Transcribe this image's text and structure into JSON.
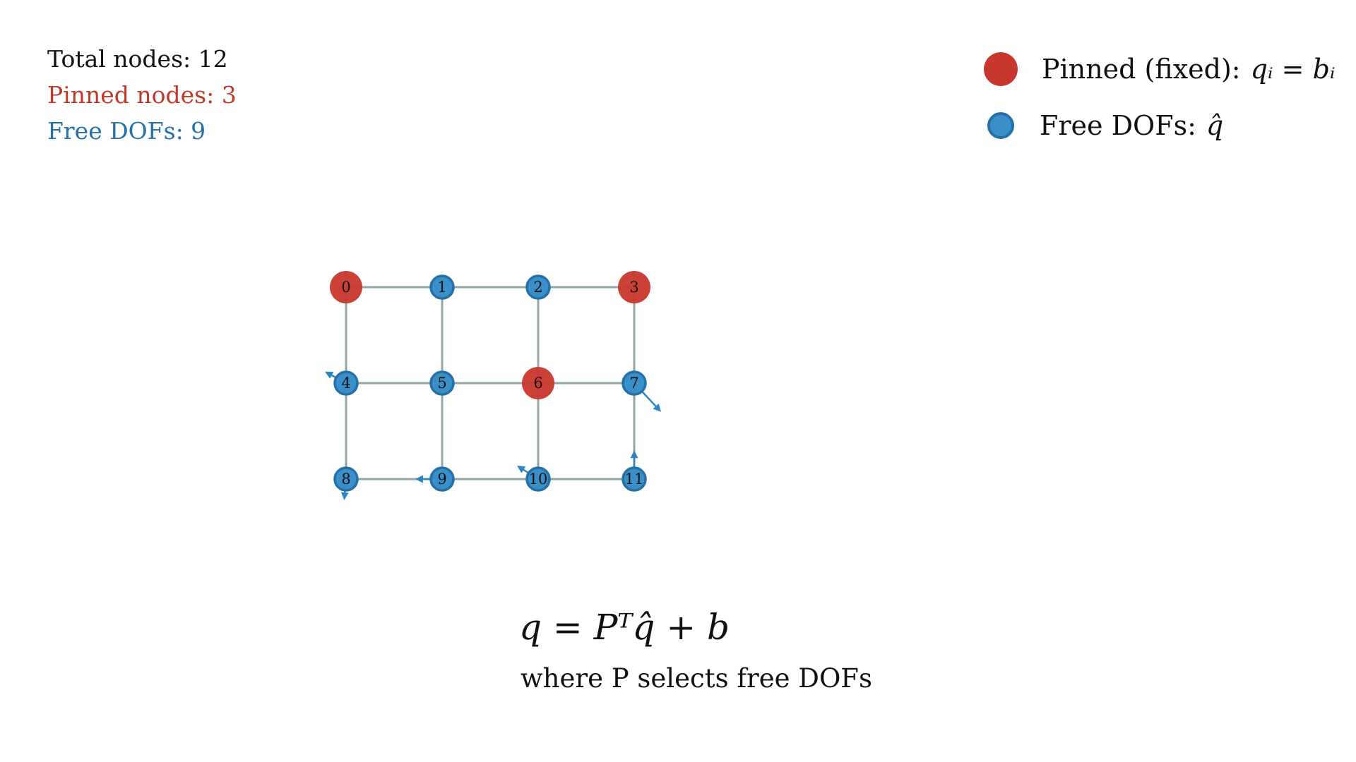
{
  "stats": {
    "total_nodes": "Total nodes: 12",
    "pinned_nodes": "Pinned nodes: 3",
    "free_dofs": "Free DOFs: 9"
  },
  "legend": {
    "pinned_label": "Pinned (fixed):",
    "pinned_math": "qᵢ = bᵢ",
    "free_label": "Free DOFs:",
    "free_math": "q̂"
  },
  "colors": {
    "pinned": "#c0392b",
    "pinned_fill": "#c8372c",
    "free": "#3b8fc9",
    "free_stroke": "#2471a8",
    "edge": "#95a5a6",
    "arrow": "#2e86c1",
    "text": "#111111"
  },
  "graph": {
    "rows": 3,
    "cols": 4,
    "nodes": [
      {
        "id": "0",
        "pinned": true
      },
      {
        "id": "1",
        "pinned": false
      },
      {
        "id": "2",
        "pinned": false
      },
      {
        "id": "3",
        "pinned": true
      },
      {
        "id": "4",
        "pinned": false
      },
      {
        "id": "5",
        "pinned": false
      },
      {
        "id": "6",
        "pinned": true
      },
      {
        "id": "7",
        "pinned": false
      },
      {
        "id": "8",
        "pinned": false
      },
      {
        "id": "9",
        "pinned": false
      },
      {
        "id": "10",
        "pinned": false
      },
      {
        "id": "11",
        "pinned": false
      }
    ],
    "edges": [
      [
        0,
        1
      ],
      [
        1,
        2
      ],
      [
        2,
        3
      ],
      [
        4,
        5
      ],
      [
        5,
        6
      ],
      [
        6,
        7
      ],
      [
        8,
        9
      ],
      [
        9,
        10
      ],
      [
        10,
        11
      ],
      [
        0,
        4
      ],
      [
        4,
        8
      ],
      [
        1,
        5
      ],
      [
        5,
        9
      ],
      [
        2,
        6
      ],
      [
        6,
        10
      ],
      [
        3,
        7
      ],
      [
        7,
        11
      ]
    ],
    "velocity_arrows": [
      {
        "node": 4,
        "dx": -0.22,
        "dy": -0.12
      },
      {
        "node": 7,
        "dx": 0.28,
        "dy": 0.3
      },
      {
        "node": 8,
        "dx": -0.02,
        "dy": 0.22
      },
      {
        "node": 9,
        "dx": -0.28,
        "dy": 0.0
      },
      {
        "node": 10,
        "dx": -0.22,
        "dy": -0.14
      },
      {
        "node": 11,
        "dx": 0.0,
        "dy": -0.3
      }
    ]
  },
  "formula": {
    "expression": "q = Pᵀq̂ + b",
    "caption": "where P selects free DOFs"
  }
}
